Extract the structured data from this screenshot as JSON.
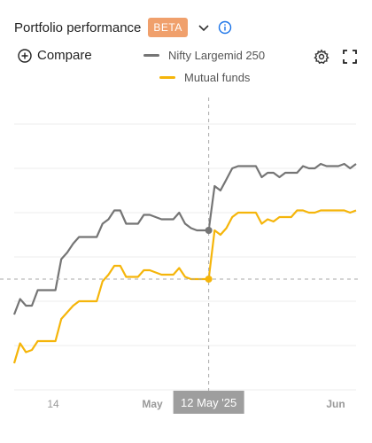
{
  "header": {
    "title": "Portfolio performance",
    "badge": "BETA"
  },
  "toolbar": {
    "compare_label": "Compare"
  },
  "legend": [
    {
      "name": "Nifty Largemid 250",
      "color": "#757575"
    },
    {
      "name": "Mutual funds",
      "color": "#f5b50a"
    }
  ],
  "tooltip": {
    "date_label": "12 May '25"
  },
  "chart_data": {
    "type": "line",
    "x_ticks": [
      "14",
      "May",
      "Jun"
    ],
    "grid": true,
    "series": [
      {
        "name": "Nifty Largemid 250",
        "color": "#757575",
        "values": [
          -4.6,
          -3.9,
          -4.2,
          -4.2,
          -3.5,
          -3.5,
          -3.5,
          -3.5,
          -2.1,
          -1.8,
          -1.4,
          -1.1,
          -1.1,
          -1.1,
          -1.1,
          -0.5,
          -0.3,
          0.1,
          0.1,
          -0.5,
          -0.5,
          -0.5,
          -0.1,
          -0.1,
          -0.2,
          -0.3,
          -0.3,
          -0.3,
          0.0,
          -0.5,
          -0.7,
          -0.8,
          -0.8,
          -0.8,
          1.2,
          1.0,
          1.5,
          2.0,
          2.1,
          2.1,
          2.1,
          2.1,
          1.6,
          1.8,
          1.8,
          1.6,
          1.8,
          1.8,
          1.8,
          2.1,
          2.0,
          2.0,
          2.2,
          2.1,
          2.1,
          2.1,
          2.2,
          2.0,
          2.2
        ]
      },
      {
        "name": "Mutual funds",
        "color": "#f5b50a",
        "values": [
          -6.8,
          -5.9,
          -6.3,
          -6.2,
          -5.8,
          -5.8,
          -5.8,
          -5.8,
          -4.8,
          -4.5,
          -4.2,
          -4.0,
          -4.0,
          -4.0,
          -4.0,
          -3.1,
          -2.8,
          -2.4,
          -2.4,
          -2.9,
          -2.9,
          -2.9,
          -2.6,
          -2.6,
          -2.7,
          -2.8,
          -2.8,
          -2.8,
          -2.5,
          -2.9,
          -3.0,
          -3.0,
          -3.0,
          -3.0,
          -0.8,
          -1.0,
          -0.7,
          -0.2,
          0.0,
          0.0,
          0.0,
          0.0,
          -0.5,
          -0.3,
          -0.4,
          -0.2,
          -0.2,
          -0.2,
          0.1,
          0.1,
          0.0,
          0.0,
          0.1,
          0.1,
          0.1,
          0.1,
          0.1,
          0.0,
          0.1
        ]
      }
    ],
    "crosshair": {
      "index": 33,
      "reference_value": -3.0
    }
  }
}
